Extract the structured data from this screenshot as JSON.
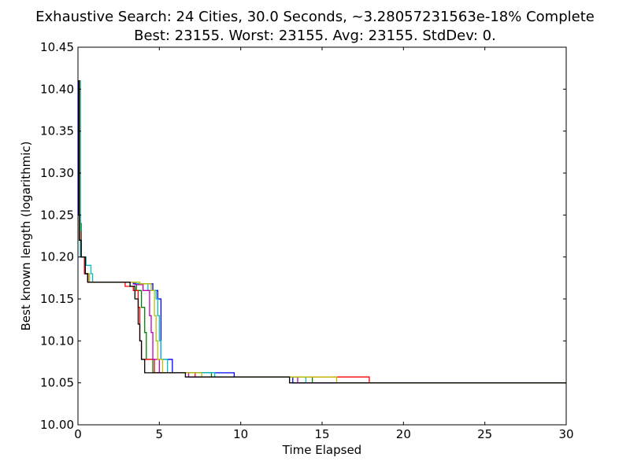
{
  "chart_data": {
    "type": "line",
    "title": "Exhaustive Search: 24 Cities, 30.0 Seconds, ~3.28057231563e-18% Complete",
    "subtitle": "Best: 23155. Worst: 23155. Avg: 23155. StdDev: 0.",
    "xlabel": "Time Elapsed",
    "ylabel": "Best known length (logarithmic)",
    "xlim": [
      0,
      30
    ],
    "ylim": [
      10.0,
      10.45
    ],
    "xticks": [
      0,
      5,
      10,
      15,
      20,
      25,
      30
    ],
    "yticks": [
      "10.00",
      "10.05",
      "10.10",
      "10.15",
      "10.20",
      "10.25",
      "10.30",
      "10.35",
      "10.40",
      "10.45"
    ],
    "grid": false,
    "series": [
      {
        "color": "#0000ff",
        "points": [
          [
            0,
            10.41
          ],
          [
            0.05,
            10.25
          ],
          [
            0.15,
            10.2
          ],
          [
            0.4,
            10.18
          ],
          [
            0.6,
            10.17
          ],
          [
            3.4,
            10.168
          ],
          [
            4.6,
            10.16
          ],
          [
            4.9,
            10.15
          ],
          [
            5.1,
            10.1
          ],
          [
            5.1,
            10.078
          ],
          [
            5.8,
            10.078
          ],
          [
            5.8,
            10.062
          ],
          [
            9.6,
            10.062
          ],
          [
            9.6,
            10.057
          ],
          [
            13.2,
            10.057
          ],
          [
            13.2,
            10.05
          ],
          [
            30,
            10.05
          ]
        ]
      },
      {
        "color": "#008000",
        "points": [
          [
            0,
            10.41
          ],
          [
            0.08,
            10.24
          ],
          [
            0.2,
            10.2
          ],
          [
            0.45,
            10.18
          ],
          [
            0.7,
            10.17
          ],
          [
            3.3,
            10.17
          ],
          [
            3.6,
            10.16
          ],
          [
            3.9,
            10.14
          ],
          [
            4.1,
            10.11
          ],
          [
            4.2,
            10.078
          ],
          [
            4.6,
            10.078
          ],
          [
            4.6,
            10.062
          ],
          [
            8.2,
            10.062
          ],
          [
            8.2,
            10.057
          ],
          [
            14.4,
            10.057
          ],
          [
            14.4,
            10.05
          ],
          [
            30,
            10.05
          ]
        ]
      },
      {
        "color": "#ff0000",
        "points": [
          [
            0,
            10.41
          ],
          [
            0.1,
            10.23
          ],
          [
            0.2,
            10.2
          ],
          [
            0.4,
            10.18
          ],
          [
            0.6,
            10.17
          ],
          [
            2.9,
            10.165
          ],
          [
            3.4,
            10.16
          ],
          [
            3.7,
            10.14
          ],
          [
            3.8,
            10.1
          ],
          [
            3.9,
            10.078
          ],
          [
            4.7,
            10.078
          ],
          [
            4.7,
            10.062
          ],
          [
            7.2,
            10.062
          ],
          [
            7.2,
            10.057
          ],
          [
            17.9,
            10.057
          ],
          [
            17.9,
            10.05
          ],
          [
            30,
            10.05
          ]
        ]
      },
      {
        "color": "#00bfbf",
        "points": [
          [
            0,
            10.41
          ],
          [
            0.15,
            10.2
          ],
          [
            0.5,
            10.19
          ],
          [
            0.8,
            10.18
          ],
          [
            0.9,
            10.17
          ],
          [
            3.6,
            10.168
          ],
          [
            4.3,
            10.16
          ],
          [
            4.8,
            10.15
          ],
          [
            4.9,
            10.13
          ],
          [
            5.0,
            10.1
          ],
          [
            5.1,
            10.078
          ],
          [
            5.5,
            10.078
          ],
          [
            5.5,
            10.062
          ],
          [
            8.4,
            10.062
          ],
          [
            8.4,
            10.057
          ],
          [
            14.0,
            10.057
          ],
          [
            14.0,
            10.05
          ],
          [
            30,
            10.05
          ]
        ]
      },
      {
        "color": "#bf00bf",
        "points": [
          [
            0,
            10.41
          ],
          [
            0.1,
            10.22
          ],
          [
            0.2,
            10.2
          ],
          [
            0.45,
            10.18
          ],
          [
            0.7,
            10.17
          ],
          [
            3.5,
            10.167
          ],
          [
            4.0,
            10.16
          ],
          [
            4.4,
            10.13
          ],
          [
            4.5,
            10.11
          ],
          [
            4.6,
            10.078
          ],
          [
            5.0,
            10.078
          ],
          [
            5.0,
            10.062
          ],
          [
            6.8,
            10.062
          ],
          [
            6.8,
            10.057
          ],
          [
            13.5,
            10.057
          ],
          [
            13.5,
            10.05
          ],
          [
            30,
            10.05
          ]
        ]
      },
      {
        "color": "#bfbf00",
        "points": [
          [
            0,
            10.41
          ],
          [
            0.1,
            10.22
          ],
          [
            0.2,
            10.2
          ],
          [
            0.45,
            10.18
          ],
          [
            0.7,
            10.17
          ],
          [
            3.8,
            10.168
          ],
          [
            4.5,
            10.16
          ],
          [
            4.7,
            10.13
          ],
          [
            4.8,
            10.1
          ],
          [
            4.9,
            10.078
          ],
          [
            5.2,
            10.078
          ],
          [
            5.2,
            10.062
          ],
          [
            7.6,
            10.062
          ],
          [
            7.6,
            10.057
          ],
          [
            15.9,
            10.057
          ],
          [
            15.9,
            10.05
          ],
          [
            30,
            10.05
          ]
        ]
      },
      {
        "color": "#000000",
        "points": [
          [
            0,
            10.41
          ],
          [
            0.08,
            10.22
          ],
          [
            0.2,
            10.2
          ],
          [
            0.45,
            10.18
          ],
          [
            0.6,
            10.17
          ],
          [
            3.2,
            10.165
          ],
          [
            3.5,
            10.15
          ],
          [
            3.7,
            10.12
          ],
          [
            3.8,
            10.1
          ],
          [
            3.9,
            10.078
          ],
          [
            4.1,
            10.078
          ],
          [
            4.1,
            10.062
          ],
          [
            6.6,
            10.062
          ],
          [
            6.6,
            10.057
          ],
          [
            13.0,
            10.057
          ],
          [
            13.0,
            10.05
          ],
          [
            30,
            10.05
          ]
        ]
      }
    ]
  }
}
